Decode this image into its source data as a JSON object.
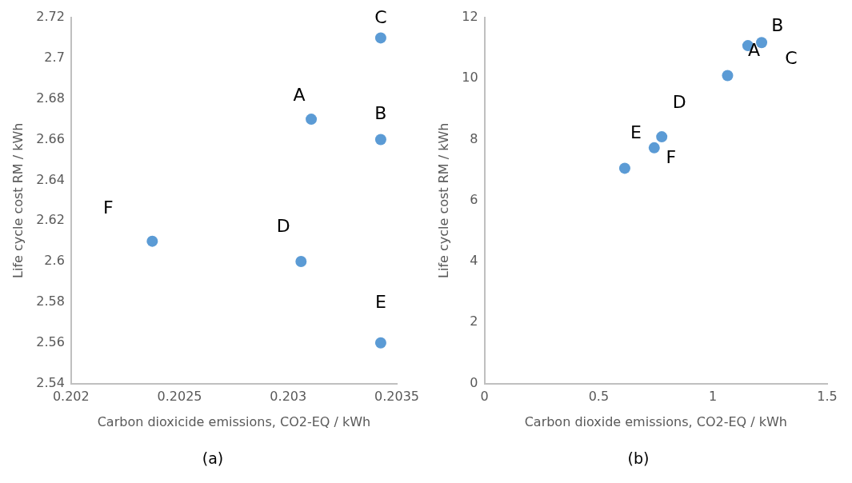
{
  "chart_data": [
    {
      "type": "scatter",
      "xlabel": "Carbon dioxicide emissions, CO2-EQ / kWh",
      "ylabel": "Life cycle cost RM / kWh",
      "x": [
        0.203106,
        0.203426,
        0.203426,
        0.203059,
        0.203426,
        0.202374
      ],
      "values": [
        2.67,
        2.66,
        2.71,
        2.6,
        2.56,
        2.61
      ],
      "value_labels": [
        "A",
        "B",
        "C",
        "D",
        "E",
        "F"
      ],
      "color": "#5b9bd5",
      "marker": "circle",
      "grid": false,
      "legend": false,
      "xlim": [
        0.202,
        0.2035
      ],
      "xticks": [
        0.202,
        0.2025,
        0.203,
        0.2035
      ],
      "ylim": [
        2.54,
        2.72
      ],
      "yticks": [
        2.54,
        2.56,
        2.58,
        2.6,
        2.62,
        2.64,
        2.66,
        2.68,
        2.7,
        2.72
      ],
      "annotations": [
        "(a)"
      ]
    },
    {
      "type": "scatter",
      "xlabel": "Carbon dioxide emissions, CO2-EQ / kWh",
      "ylabel": "Life cycle cost RM / kWh",
      "x": [
        1.064,
        1.153,
        1.213,
        0.776,
        0.614,
        0.743
      ],
      "values": [
        10.1,
        11.08,
        11.18,
        8.09,
        7.06,
        7.73
      ],
      "value_labels": [
        "A",
        "B",
        "C",
        "D",
        "E",
        "F"
      ],
      "color": "#5b9bd5",
      "marker": "circle",
      "grid": false,
      "legend": false,
      "xlim": [
        0,
        1.5
      ],
      "xticks": [
        0,
        0.5,
        1,
        1.5
      ],
      "ylim": [
        0,
        12
      ],
      "yticks": [
        0,
        2,
        4,
        6,
        8,
        10,
        12
      ],
      "annotations": [
        "(b)"
      ]
    }
  ]
}
